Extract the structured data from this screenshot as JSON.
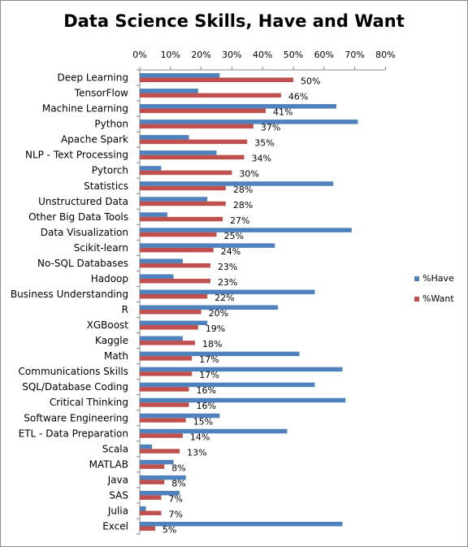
{
  "chart_data": {
    "type": "bar",
    "orientation": "horizontal",
    "title": "Data Science Skills, Have and Want",
    "xlabel": "",
    "ylabel": "",
    "xlim": [
      0,
      80
    ],
    "x_ticks": [
      "0%",
      "10%",
      "20%",
      "30%",
      "40%",
      "50%",
      "60%",
      "70%",
      "80%"
    ],
    "x_axis_position": "top",
    "grid": false,
    "legend_position": "right",
    "categories": [
      "Deep Learning",
      "TensorFlow",
      "Machine Learning",
      "Python",
      "Apache Spark",
      "NLP - Text Processing",
      "Pytorch",
      "Statistics",
      "Unstructured Data",
      "Other Big Data Tools",
      "Data Visualization",
      "Scikit-learn",
      "No-SQL Databases",
      "Hadoop",
      "Business Understanding",
      "R",
      "XGBoost",
      "Kaggle",
      "Math",
      "Communications Skills",
      "SQL/Database Coding",
      "Critical Thinking",
      "Software Engineering",
      "ETL - Data Preparation",
      "Scala",
      "MATLAB",
      "Java",
      "SAS",
      "Julia",
      "Excel"
    ],
    "series": [
      {
        "name": "%Have",
        "color": "#4f81bd",
        "values": [
          26,
          19,
          64,
          71,
          16,
          25,
          7,
          63,
          22,
          9,
          69,
          44,
          14,
          11,
          57,
          45,
          22,
          14,
          52,
          66,
          57,
          67,
          26,
          48,
          4,
          11,
          15,
          13,
          2,
          66
        ]
      },
      {
        "name": "%Want",
        "color": "#c0504d",
        "values": [
          50,
          46,
          41,
          37,
          35,
          34,
          30,
          28,
          28,
          27,
          25,
          24,
          23,
          23,
          22,
          20,
          19,
          18,
          17,
          17,
          16,
          16,
          15,
          14,
          13,
          8,
          8,
          7,
          7,
          5
        ],
        "data_labels": [
          "50%",
          "46%",
          "41%",
          "37%",
          "35%",
          "34%",
          "30%",
          "28%",
          "28%",
          "27%",
          "25%",
          "24%",
          "23%",
          "23%",
          "22%",
          "20%",
          "19%",
          "18%",
          "17%",
          "17%",
          "16%",
          "16%",
          "15%",
          "14%",
          "13%",
          "8%",
          "8%",
          "7%",
          "7%",
          "5%"
        ]
      }
    ]
  }
}
